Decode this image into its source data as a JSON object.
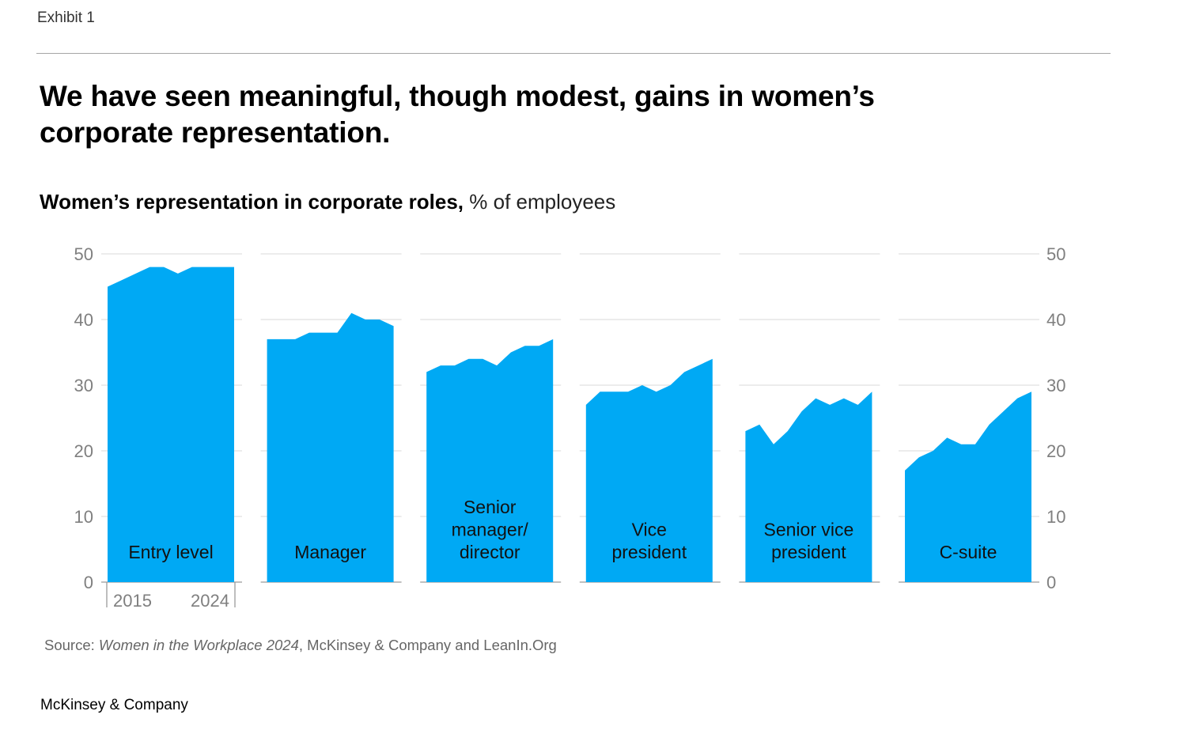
{
  "header": {
    "exhibit": "Exhibit 1",
    "title": "We have seen meaningful, though modest, gains in women’s corporate representation."
  },
  "chart_data": {
    "type": "area",
    "title": "Women’s representation in corporate roles,",
    "unit": "% of employees",
    "ylim": [
      0,
      50
    ],
    "yticks": [
      0,
      10,
      20,
      30,
      40,
      50
    ],
    "x_start_label": "2015",
    "x_end_label": "2024",
    "color": "#00a9f4",
    "series": [
      {
        "name": "Entry level",
        "label_lines": [
          "Entry level"
        ],
        "values": [
          45,
          46,
          47,
          48,
          48,
          47,
          48,
          48,
          48,
          48
        ]
      },
      {
        "name": "Manager",
        "label_lines": [
          "Manager"
        ],
        "values": [
          37,
          37,
          37,
          38,
          38,
          38,
          41,
          40,
          40,
          39
        ]
      },
      {
        "name": "Senior manager/director",
        "label_lines": [
          "Senior",
          "manager/",
          "director"
        ],
        "values": [
          32,
          33,
          33,
          34,
          34,
          33,
          35,
          36,
          36,
          37
        ]
      },
      {
        "name": "Vice president",
        "label_lines": [
          "Vice",
          "president"
        ],
        "values": [
          27,
          29,
          29,
          29,
          30,
          29,
          30,
          32,
          33,
          34
        ]
      },
      {
        "name": "Senior vice president",
        "label_lines": [
          "Senior vice",
          "president"
        ],
        "values": [
          23,
          24,
          21,
          23,
          26,
          28,
          27,
          28,
          27,
          29
        ]
      },
      {
        "name": "C-suite",
        "label_lines": [
          "C-suite"
        ],
        "values": [
          17,
          19,
          20,
          22,
          21,
          21,
          24,
          26,
          28,
          29
        ]
      }
    ]
  },
  "source": {
    "prefix": "Source: ",
    "publication": "Women in the Workplace 2024",
    "rest": ", McKinsey & Company and LeanIn.Org"
  },
  "footer": {
    "brand": "McKinsey & Company"
  }
}
